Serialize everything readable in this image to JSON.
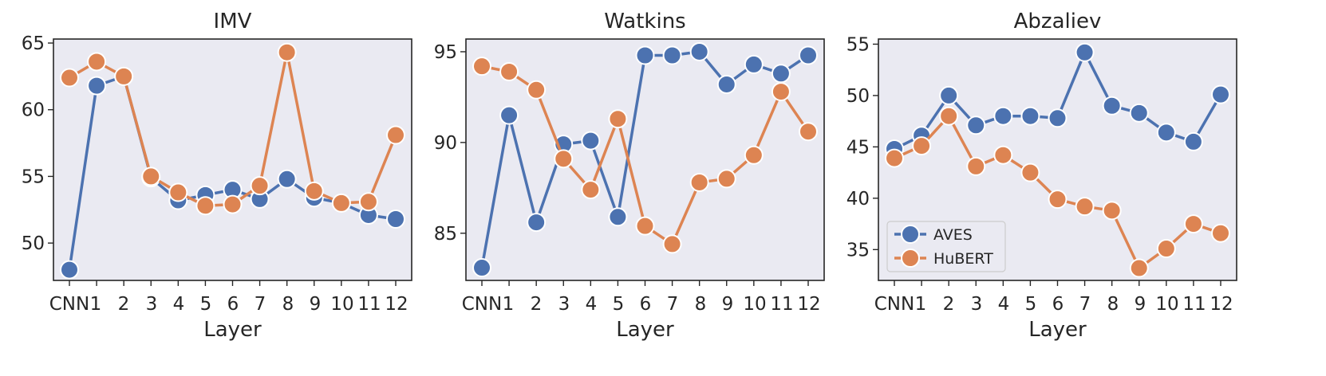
{
  "chart_data": [
    {
      "type": "line",
      "title": "IMV",
      "xlabel": "Layer",
      "ylabel": "",
      "categories": [
        "CNN",
        "1",
        "2",
        "3",
        "4",
        "5",
        "6",
        "7",
        "8",
        "9",
        "10",
        "11",
        "12"
      ],
      "yticks": [
        50,
        55,
        60,
        65
      ],
      "ylim": [
        47.2,
        65.3
      ],
      "series": [
        {
          "name": "AVES",
          "color": "#4c72b0",
          "values": [
            48.0,
            61.8,
            62.5,
            54.9,
            53.2,
            53.6,
            54.0,
            53.3,
            54.8,
            53.4,
            53.0,
            52.1,
            51.8
          ]
        },
        {
          "name": "HuBERT",
          "color": "#dd8452",
          "values": [
            62.4,
            63.6,
            62.5,
            55.0,
            53.8,
            52.8,
            52.9,
            54.3,
            64.3,
            53.9,
            53.0,
            53.1,
            58.1
          ]
        }
      ]
    },
    {
      "type": "line",
      "title": "Watkins",
      "xlabel": "Layer",
      "ylabel": "",
      "categories": [
        "CNN",
        "1",
        "2",
        "3",
        "4",
        "5",
        "6",
        "7",
        "8",
        "9",
        "10",
        "11",
        "12"
      ],
      "yticks": [
        85,
        90,
        95
      ],
      "ylim": [
        82.4,
        95.7
      ],
      "series": [
        {
          "name": "AVES",
          "color": "#4c72b0",
          "values": [
            83.1,
            91.5,
            85.6,
            89.9,
            90.1,
            85.9,
            94.8,
            94.8,
            95.0,
            93.2,
            94.3,
            93.8,
            94.8
          ]
        },
        {
          "name": "HuBERT",
          "color": "#dd8452",
          "values": [
            94.2,
            93.9,
            92.9,
            89.1,
            87.4,
            91.3,
            85.4,
            84.4,
            87.8,
            88.0,
            89.3,
            92.8,
            90.6
          ]
        }
      ]
    },
    {
      "type": "line",
      "title": "Abzaliev",
      "xlabel": "Layer",
      "ylabel": "",
      "categories": [
        "CNN",
        "1",
        "2",
        "3",
        "4",
        "5",
        "6",
        "7",
        "8",
        "9",
        "10",
        "11",
        "12"
      ],
      "yticks": [
        35,
        40,
        45,
        50,
        55
      ],
      "ylim": [
        32.0,
        55.5
      ],
      "legend": {
        "placement": "lower-left",
        "entries": [
          "AVES",
          "HuBERT"
        ]
      },
      "series": [
        {
          "name": "AVES",
          "color": "#4c72b0",
          "values": [
            44.8,
            46.1,
            50.0,
            47.1,
            48.0,
            48.0,
            47.8,
            54.2,
            49.0,
            48.3,
            46.4,
            45.5,
            50.1
          ]
        },
        {
          "name": "HuBERT",
          "color": "#dd8452",
          "values": [
            43.9,
            45.1,
            48.0,
            43.1,
            44.2,
            42.5,
            39.9,
            39.2,
            38.8,
            33.2,
            35.1,
            37.5,
            36.6
          ]
        }
      ]
    }
  ]
}
